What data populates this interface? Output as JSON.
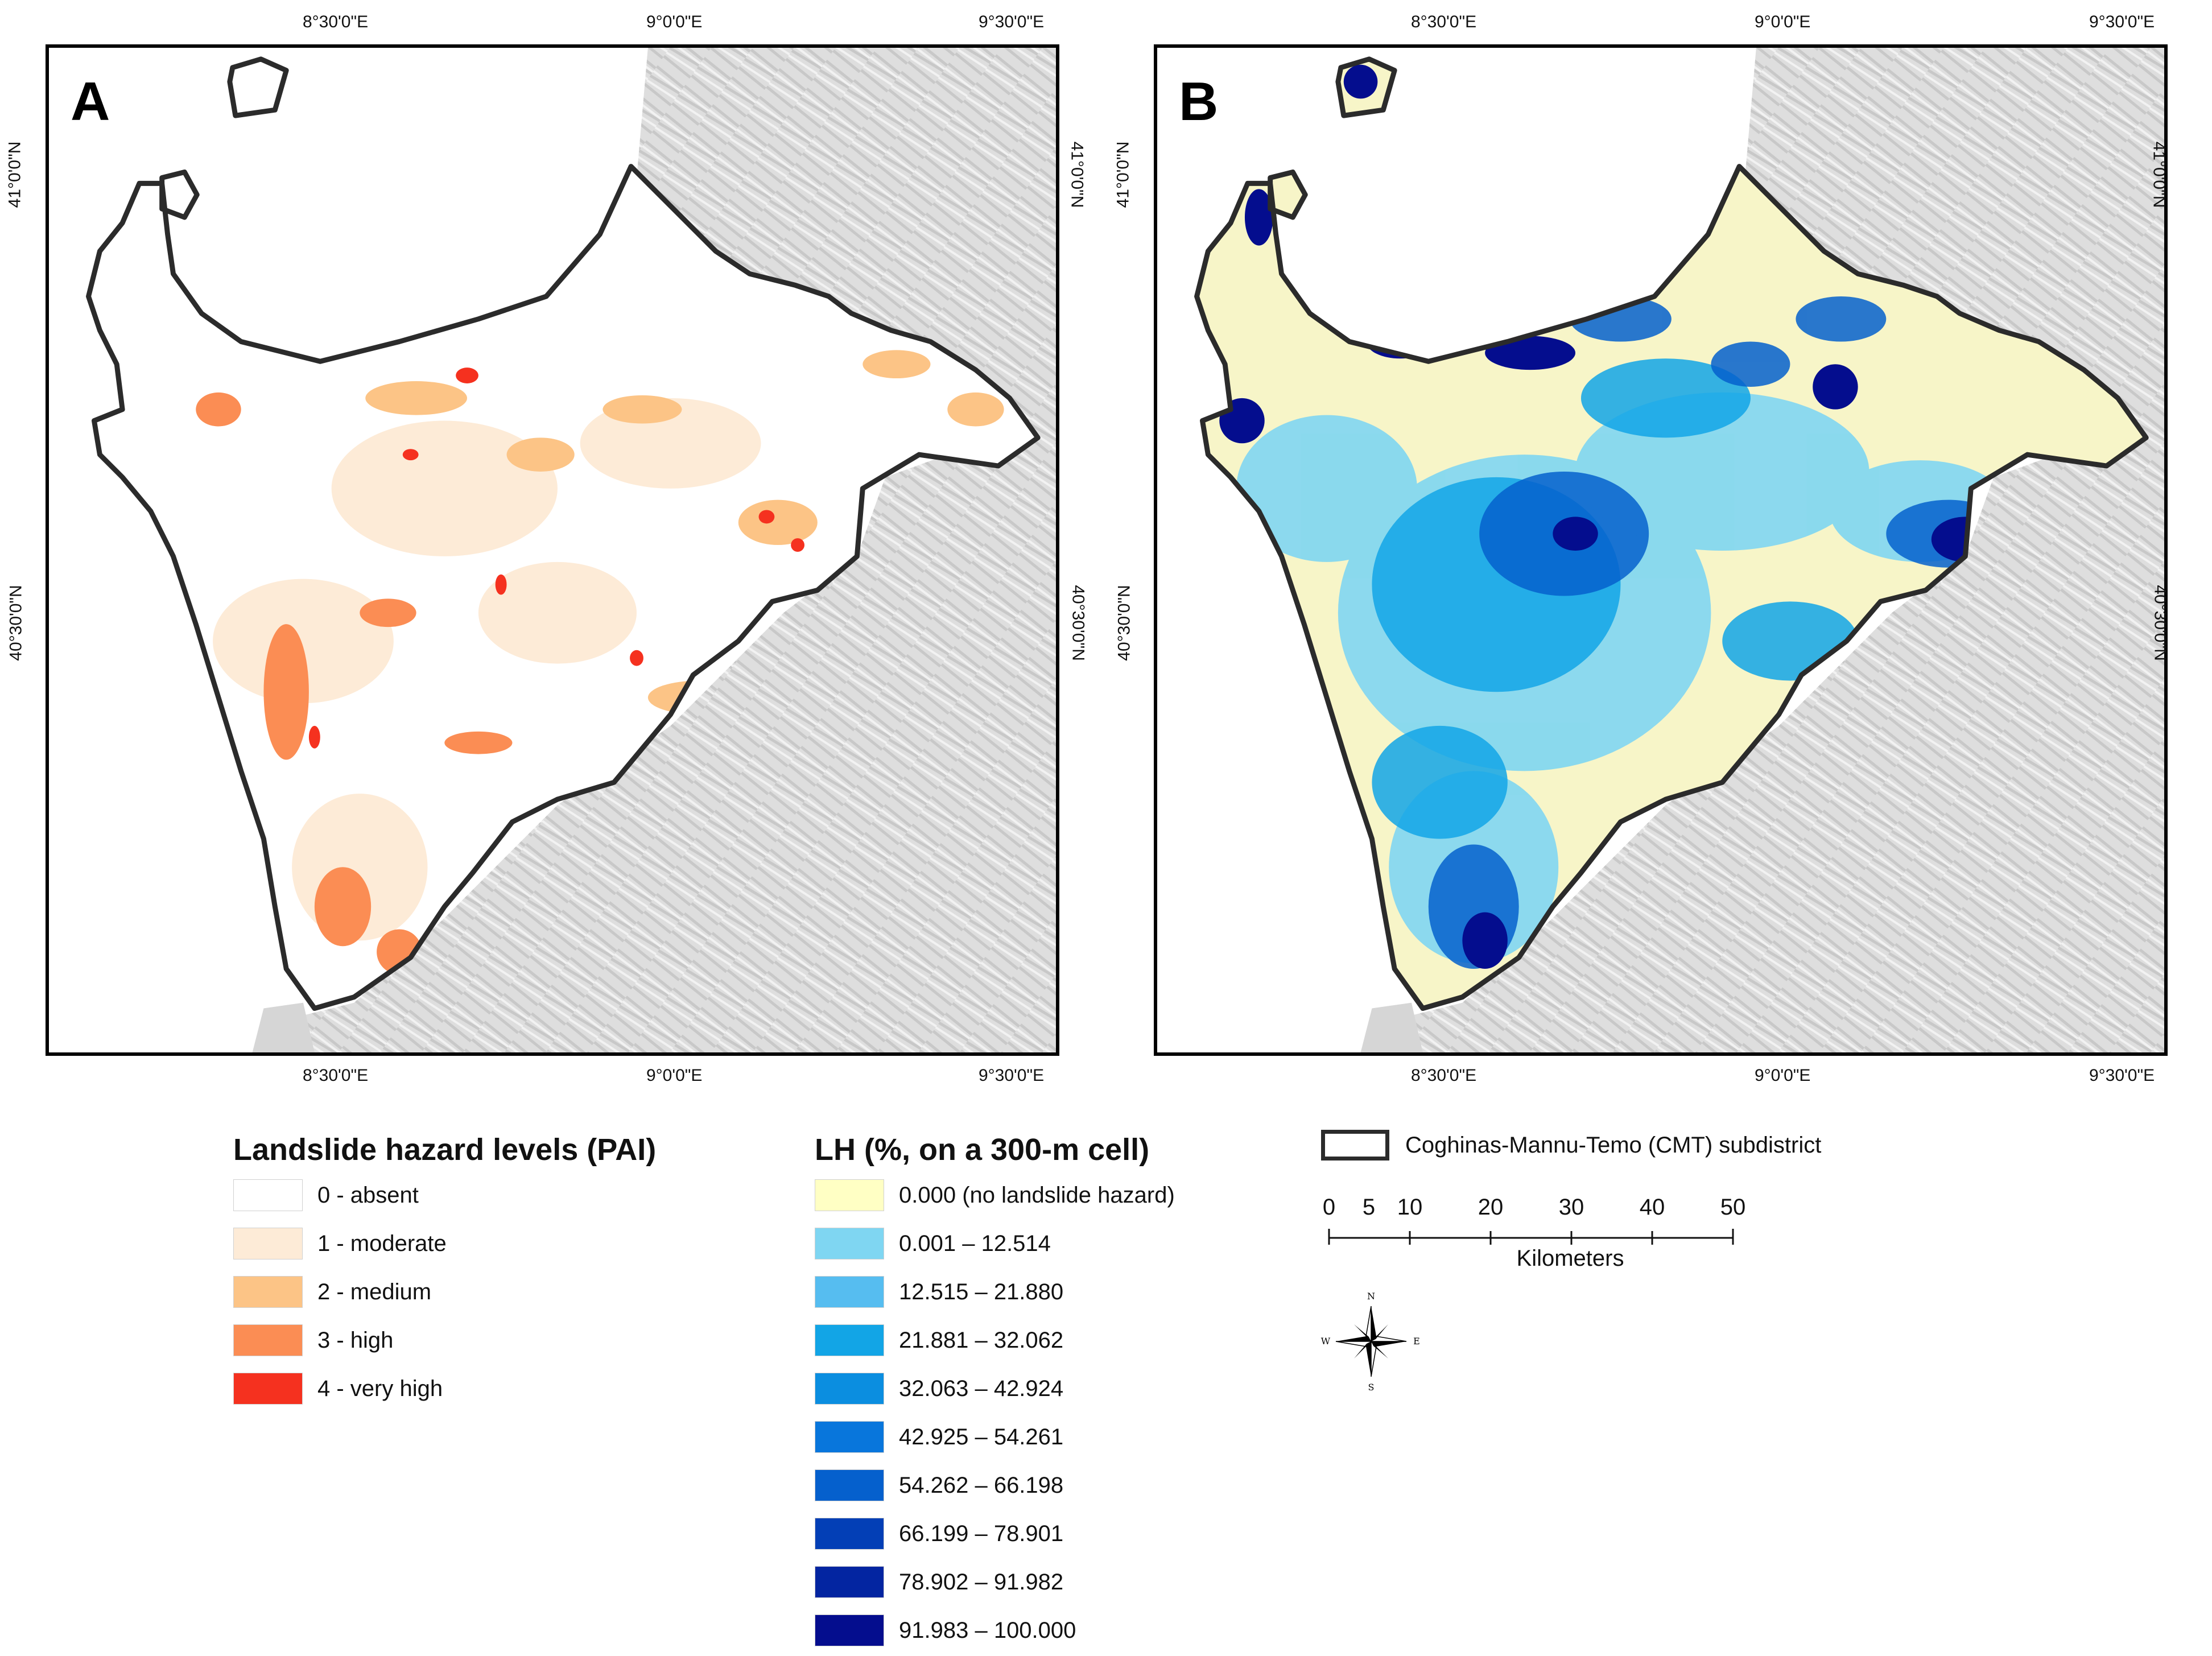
{
  "panels": {
    "a": {
      "letter": "A"
    },
    "b": {
      "letter": "B"
    }
  },
  "graticule": {
    "top_lon": [
      "8°30'0\"E",
      "9°0'0\"E",
      "9°30'0\"E"
    ],
    "bottom_lon": [
      "8°30'0\"E",
      "9°0'0\"E",
      "9°30'0\"E"
    ],
    "lat": [
      "41°0'0\"N",
      "40°30'0\"N"
    ]
  },
  "legend_pai": {
    "title": "Landslide hazard levels (PAI)",
    "items": [
      {
        "label": "0 - absent",
        "color": "#ffffff"
      },
      {
        "label": "1 - moderate",
        "color": "#fdebd7"
      },
      {
        "label": "2 - medium",
        "color": "#fcc486"
      },
      {
        "label": "3 - high",
        "color": "#fb8d54"
      },
      {
        "label": "4 - very high",
        "color": "#f5311f"
      }
    ]
  },
  "legend_lh": {
    "title": "LH (%, on a 300-m cell)",
    "items": [
      {
        "label": "0.000 (no landslide hazard)",
        "color": "#ffffc4"
      },
      {
        "label": "0.001 – 12.514",
        "color": "#7fd6f2"
      },
      {
        "label": "12.515 – 21.880",
        "color": "#56bdf0"
      },
      {
        "label": "21.881 – 32.062",
        "color": "#12a5e6"
      },
      {
        "label": "32.063 – 42.924",
        "color": "#0b8ee0"
      },
      {
        "label": "42.925 – 54.261",
        "color": "#0876dc"
      },
      {
        "label": "54.262 – 66.198",
        "color": "#0560cd"
      },
      {
        "label": "66.199 – 78.901",
        "color": "#033fb6"
      },
      {
        "label": "78.902 – 91.982",
        "color": "#0325a1"
      },
      {
        "label": "91.983 – 100.000",
        "color": "#040d8e"
      }
    ]
  },
  "boundary_legend": {
    "label": "Coghinas-Mannu-Temo (CMT) subdistrict",
    "color": "#2b2b2b"
  },
  "scale_bar": {
    "ticks": [
      "0",
      "5",
      "10",
      "20",
      "30",
      "40",
      "50"
    ],
    "unit": "Kilometers"
  },
  "north_arrow": {
    "icon": "compass-rose-icon",
    "n": "N",
    "s": "S",
    "e": "E",
    "w": "W"
  },
  "colors": {
    "hillshade": "#e0e0e0",
    "sea": "#ffffff"
  }
}
